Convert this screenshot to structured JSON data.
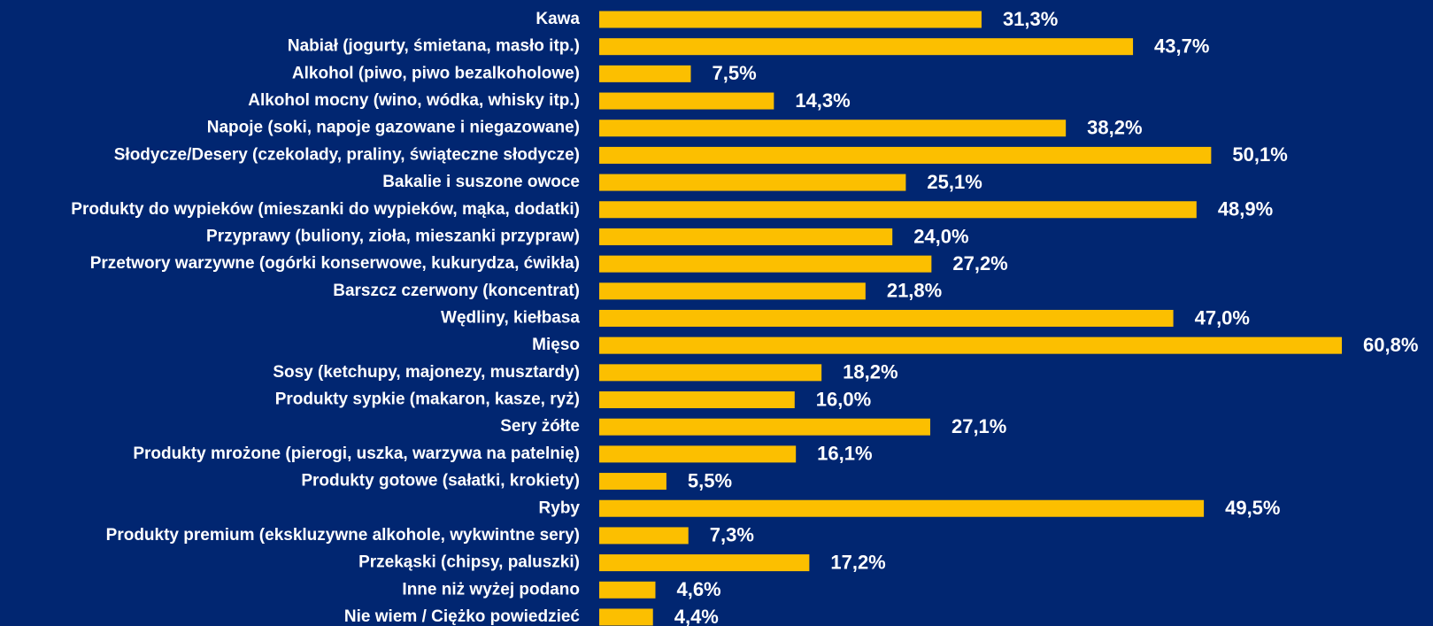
{
  "chart_data": {
    "type": "bar",
    "orientation": "horizontal",
    "color": "#fcbf00",
    "categories": [
      "Kawa",
      "Nabiał (jogurty, śmietana, masło itp.)",
      "Alkohol (piwo, piwo bezalkoholowe)",
      "Alkohol mocny (wino, wódka, whisky itp.)",
      "Napoje (soki, napoje gazowane i niegazowane)",
      "Słodycze/Desery (czekolady, praliny, świąteczne słodycze)",
      "Bakalie i suszone owoce",
      "Produkty do wypieków (mieszanki do wypieków, mąka, dodatki)",
      "Przyprawy (buliony, zioła, mieszanki przypraw)",
      "Przetwory warzywne (ogórki konserwowe, kukurydza, ćwikła)",
      "Barszcz czerwony (koncentrat)",
      "Wędliny, kiełbasa",
      "Mięso",
      "Sosy (ketchupy, majonezy, musztardy)",
      "Produkty sypkie (makaron, kasze, ryż)",
      "Sery żółte",
      "Produkty mrożone (pierogi, uszka, warzywa na patelnię)",
      "Produkty gotowe (sałatki, krokiety)",
      "Ryby",
      "Produkty premium (ekskluzywne alkohole, wykwintne sery)",
      "Przekąski (chipsy, paluszki)",
      "Inne niż wyżej podano",
      "Nie wiem / Ciężko powiedzieć"
    ],
    "values": [
      31.3,
      43.7,
      7.5,
      14.3,
      38.2,
      50.1,
      25.1,
      48.9,
      24.0,
      27.2,
      21.8,
      47.0,
      60.8,
      18.2,
      16.0,
      27.1,
      16.1,
      5.5,
      49.5,
      7.3,
      17.2,
      4.6,
      4.4
    ],
    "value_labels": [
      "31,3%",
      "43,7%",
      "7,5%",
      "14,3%",
      "38,2%",
      "50,1%",
      "25,1%",
      "48,9%",
      "24,0%",
      "27,2%",
      "21,8%",
      "47,0%",
      "60,8%",
      "18,2%",
      "16,0%",
      "27,1%",
      "16,1%",
      "5,5%",
      "49,5%",
      "7,3%",
      "17,2%",
      "4,6%",
      "4,4%"
    ]
  }
}
